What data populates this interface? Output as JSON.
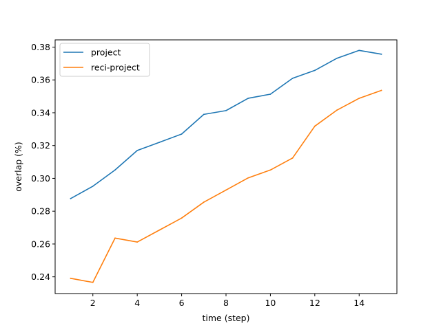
{
  "chart_data": {
    "type": "line",
    "title": "",
    "xlabel": "time (step)",
    "ylabel": "overlap (%)",
    "x": [
      1,
      2,
      3,
      4,
      5,
      6,
      7,
      8,
      9,
      10,
      11,
      12,
      13,
      14,
      15
    ],
    "xlim": [
      0.3,
      15.7
    ],
    "ylim": [
      0.2298,
      0.3844
    ],
    "xticks": [
      2,
      4,
      6,
      8,
      10,
      12,
      14
    ],
    "yticks": [
      0.24,
      0.26,
      0.28,
      0.3,
      0.32,
      0.34,
      0.36,
      0.38
    ],
    "xtick_labels": [
      "2",
      "4",
      "6",
      "8",
      "10",
      "12",
      "14"
    ],
    "ytick_labels": [
      "0.24",
      "0.26",
      "0.28",
      "0.30",
      "0.32",
      "0.34",
      "0.36",
      "0.38"
    ],
    "grid": false,
    "legend_position": "upper-left",
    "series": [
      {
        "name": "project",
        "color": "#1f77b4",
        "values": [
          0.2877,
          0.2952,
          0.3051,
          0.317,
          0.322,
          0.327,
          0.339,
          0.3413,
          0.3488,
          0.3513,
          0.361,
          0.3658,
          0.3732,
          0.378,
          0.3757
        ]
      },
      {
        "name": "reci-project",
        "color": "#ff7f0e",
        "values": [
          0.2391,
          0.2366,
          0.2636,
          0.2612,
          0.2685,
          0.2758,
          0.2855,
          0.2929,
          0.3003,
          0.3051,
          0.3124,
          0.3318,
          0.3416,
          0.3488,
          0.3536
        ]
      }
    ]
  }
}
